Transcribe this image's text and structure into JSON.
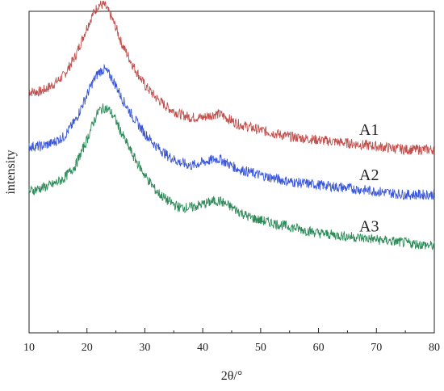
{
  "chart_data": {
    "type": "line",
    "title": "",
    "xlabel": "2θ/°",
    "ylabel": "intensity",
    "xlim": [
      10,
      80
    ],
    "xticks": [
      10,
      20,
      30,
      40,
      50,
      60,
      70,
      80
    ],
    "ylim": [
      0,
      100
    ],
    "y_tick_labels_shown": false,
    "grid": false,
    "legend": "inline labels at right",
    "series": [
      {
        "name": "A1",
        "color": "#c0504d",
        "x": [
          10,
          12,
          14,
          16,
          18,
          20,
          21,
          22,
          23,
          24,
          25,
          26,
          28,
          30,
          32,
          34,
          36,
          38,
          40,
          42,
          43,
          44,
          46,
          48,
          50,
          55,
          60,
          65,
          70,
          75,
          80
        ],
        "y": [
          75,
          75,
          77,
          80,
          86,
          95,
          99,
          102,
          102,
          99,
          95,
          90,
          83,
          77,
          73,
          70,
          68,
          67,
          67,
          68,
          68,
          67,
          65,
          64,
          63,
          61,
          60,
          59,
          58,
          57,
          57
        ]
      },
      {
        "name": "A2",
        "color": "#3a56d8",
        "x": [
          10,
          12,
          14,
          16,
          18,
          20,
          21,
          22,
          23,
          24,
          25,
          26,
          28,
          30,
          32,
          34,
          36,
          38,
          40,
          42,
          43,
          44,
          46,
          48,
          50,
          55,
          60,
          65,
          70,
          75,
          80
        ],
        "y": [
          58,
          58,
          59,
          61,
          66,
          74,
          78,
          81,
          82,
          80,
          77,
          73,
          67,
          62,
          58,
          55,
          53,
          52,
          53,
          54,
          54,
          53,
          51,
          50,
          49,
          47,
          46,
          45,
          44,
          43,
          43
        ]
      },
      {
        "name": "A3",
        "color": "#2e8b5a",
        "x": [
          10,
          12,
          14,
          16,
          18,
          20,
          21,
          22,
          23,
          24,
          25,
          26,
          28,
          30,
          32,
          34,
          36,
          38,
          40,
          42,
          43,
          44,
          46,
          48,
          50,
          55,
          60,
          65,
          70,
          75,
          80
        ],
        "y": [
          44,
          45,
          46,
          48,
          52,
          60,
          65,
          69,
          70,
          69,
          66,
          62,
          55,
          49,
          44,
          41,
          39,
          39,
          40,
          41,
          41,
          40,
          38,
          36,
          35,
          33,
          31,
          30,
          29,
          28,
          27
        ]
      }
    ]
  }
}
